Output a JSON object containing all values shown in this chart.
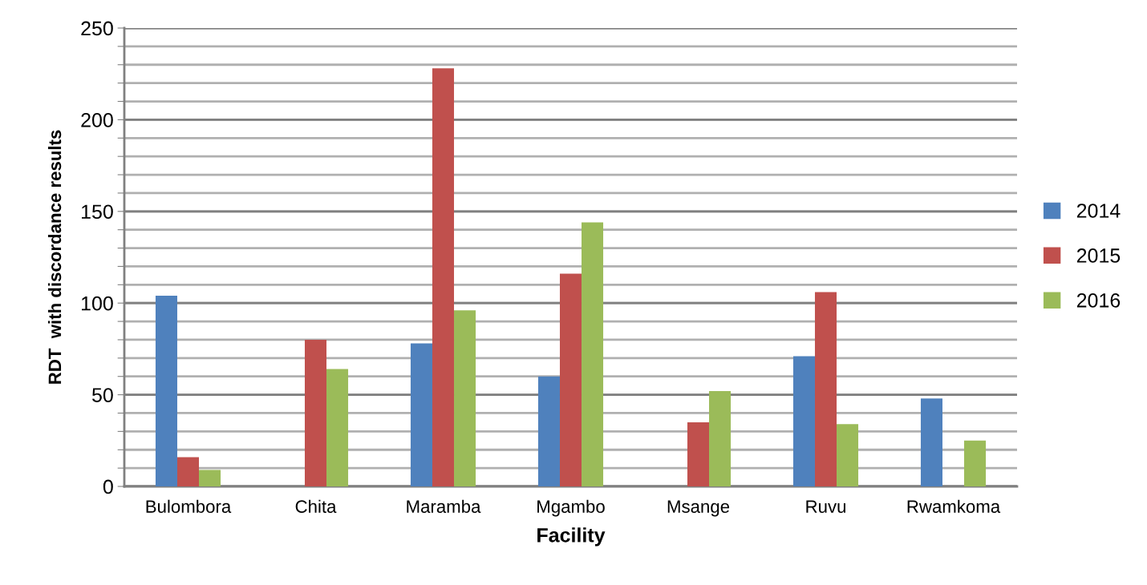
{
  "chart_data": {
    "type": "bar",
    "xlabel": "Facility",
    "ylabel": "RDT  with discordance results",
    "categories": [
      "Bulombora",
      "Chita",
      "Maramba",
      "Mgambo",
      "Msange",
      "Ruvu",
      "Rwamkoma"
    ],
    "series": [
      {
        "name": "2014",
        "color": "#4f81bd",
        "values": [
          104,
          null,
          78,
          60,
          null,
          71,
          48
        ]
      },
      {
        "name": "2015",
        "color": "#c0504d",
        "values": [
          16,
          80,
          228,
          116,
          35,
          106,
          null
        ]
      },
      {
        "name": "2016",
        "color": "#9bbb59",
        "values": [
          9,
          64,
          96,
          144,
          52,
          34,
          25
        ]
      }
    ],
    "ylim": [
      0,
      250
    ],
    "yticks": [
      0,
      {
        "value": 10,
        "label": null
      },
      {
        "value": 20,
        "label": null
      },
      {
        "value": 30,
        "label": null
      },
      {
        "value": 40,
        "label": null
      },
      50,
      {
        "value": 60,
        "label": null
      },
      {
        "value": 70,
        "label": null
      },
      {
        "value": 80,
        "label": null
      },
      {
        "value": 90,
        "label": null
      },
      100,
      {
        "value": 110,
        "label": null
      },
      {
        "value": 120,
        "label": null
      },
      {
        "value": 130,
        "label": null
      },
      {
        "value": 140,
        "label": null
      },
      150,
      {
        "value": 160,
        "label": null
      },
      {
        "value": 170,
        "label": null
      },
      {
        "value": 180,
        "label": null
      },
      {
        "value": 190,
        "label": null
      },
      200,
      {
        "value": 210,
        "label": null
      },
      {
        "value": 220,
        "label": null
      },
      {
        "value": 230,
        "label": null
      },
      {
        "value": 240,
        "label": null
      },
      250
    ],
    "grid": "y",
    "legend": "right"
  }
}
